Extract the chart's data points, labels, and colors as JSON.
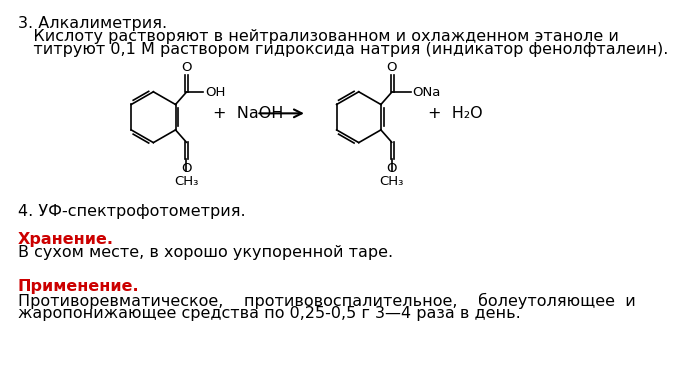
{
  "bg_color": "#ffffff",
  "line1": "3. Алкалиметрия.",
  "line2": "   Кислоту растворяют в нейтрализованном и охлажденном этаноле и",
  "line3": "   титруют 0,1 М раствором гидроксида натрия (индикатор фенолфталеин).",
  "line4": "4. УФ-спектрофотометрия.",
  "storage_header": "Хранение.",
  "storage_text": "В сухом месте, в хорошо укупоренной таре.",
  "application_header": "Применение.",
  "application_text1": "Противоревматическое,    противовоспалительное,    болеутоляющее  и",
  "application_text2": "жаропонижающее средства по 0,25-0,5 г 3—4 раза в день.",
  "red_color": "#cc0000",
  "black_color": "#000000",
  "font_size": 11.5,
  "font_size_small": 9.5
}
